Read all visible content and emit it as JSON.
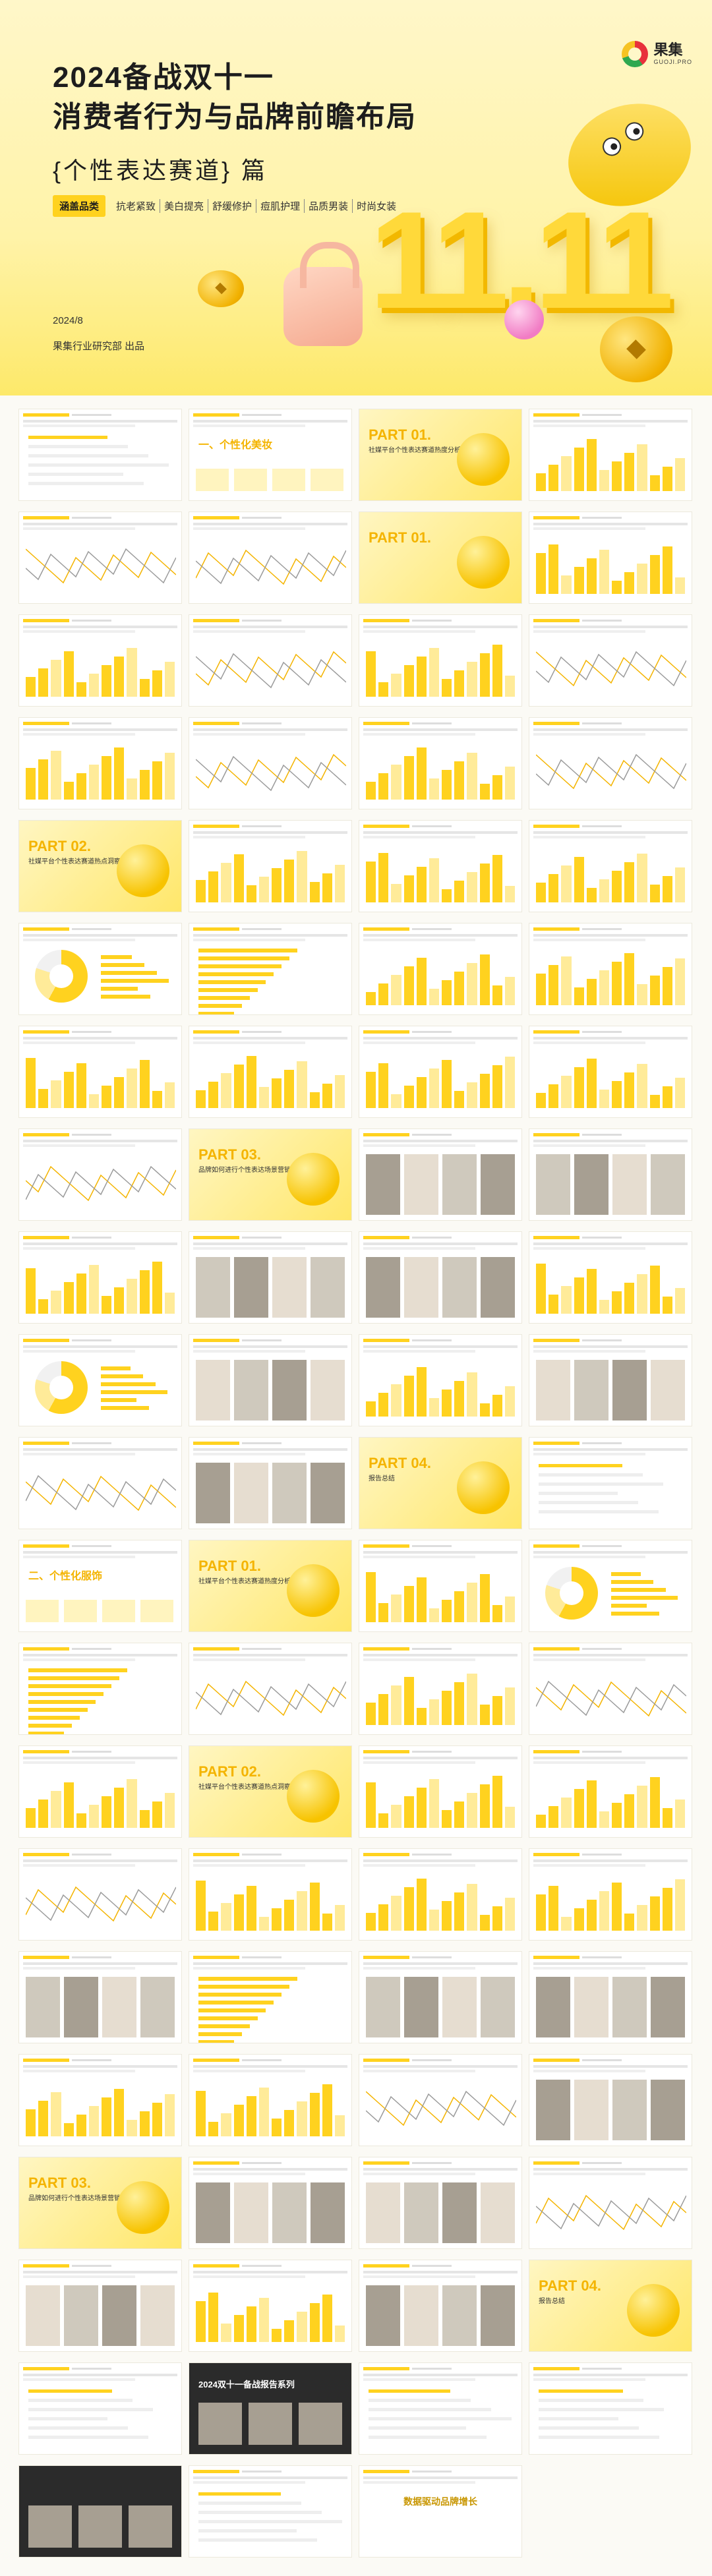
{
  "brand": {
    "name_cn": "果集",
    "name_en": "GUOJI.PRO"
  },
  "hero": {
    "title_line1": "2024备战双十一",
    "title_line2": "消费者行为与品牌前瞻布局",
    "subtitle": "{个性表达赛道} 篇",
    "tag_main": "涵盖品类",
    "tags": [
      "抗老紧致",
      "美白提亮",
      "舒缓修护",
      "痘肌护理",
      "品质男装",
      "时尚女装"
    ],
    "date": "2024/8",
    "publisher": "果集行业研究部 出品",
    "deco_text": "11.11"
  },
  "thumbnails": [
    {
      "kind": "text",
      "label": ""
    },
    {
      "kind": "section",
      "tab": "一、个性化美妆",
      "label": ""
    },
    {
      "kind": "part",
      "part": "PART 01.",
      "sub": "社媒平台个性表达赛道热度分析"
    },
    {
      "kind": "bars",
      "label": ""
    },
    {
      "kind": "line",
      "label": ""
    },
    {
      "kind": "line",
      "label": ""
    },
    {
      "kind": "part",
      "part": "PART 01.",
      "sub": ""
    },
    {
      "kind": "bars",
      "label": ""
    },
    {
      "kind": "bars",
      "label": ""
    },
    {
      "kind": "line",
      "label": ""
    },
    {
      "kind": "bars",
      "label": ""
    },
    {
      "kind": "line",
      "label": ""
    },
    {
      "kind": "bars",
      "label": ""
    },
    {
      "kind": "line",
      "label": ""
    },
    {
      "kind": "bars",
      "label": ""
    },
    {
      "kind": "line",
      "label": ""
    },
    {
      "kind": "part",
      "part": "PART 02.",
      "sub": "社媒平台个性表达赛道热点洞察"
    },
    {
      "kind": "bars",
      "label": ""
    },
    {
      "kind": "bars",
      "label": ""
    },
    {
      "kind": "bars",
      "label": ""
    },
    {
      "kind": "donut",
      "label": ""
    },
    {
      "kind": "hbars",
      "label": ""
    },
    {
      "kind": "bars",
      "label": ""
    },
    {
      "kind": "bars",
      "label": ""
    },
    {
      "kind": "bars",
      "label": ""
    },
    {
      "kind": "bars",
      "label": ""
    },
    {
      "kind": "bars",
      "label": ""
    },
    {
      "kind": "bars",
      "label": ""
    },
    {
      "kind": "line",
      "label": ""
    },
    {
      "kind": "part",
      "part": "PART 03.",
      "sub": "品牌如何进行个性表达场景营销"
    },
    {
      "kind": "photos",
      "label": ""
    },
    {
      "kind": "photos",
      "label": ""
    },
    {
      "kind": "bars",
      "label": ""
    },
    {
      "kind": "photos",
      "label": ""
    },
    {
      "kind": "photos",
      "label": ""
    },
    {
      "kind": "bars",
      "label": ""
    },
    {
      "kind": "donut",
      "label": ""
    },
    {
      "kind": "photos",
      "label": ""
    },
    {
      "kind": "bars",
      "label": ""
    },
    {
      "kind": "photos",
      "label": ""
    },
    {
      "kind": "line",
      "label": ""
    },
    {
      "kind": "photos",
      "label": ""
    },
    {
      "kind": "part",
      "part": "PART 04.",
      "sub": "报告总结"
    },
    {
      "kind": "text",
      "label": ""
    },
    {
      "kind": "section",
      "tab": "二、个性化服饰",
      "label": ""
    },
    {
      "kind": "part",
      "part": "PART 01.",
      "sub": "社媒平台个性表达赛道热度分析"
    },
    {
      "kind": "bars",
      "label": ""
    },
    {
      "kind": "donut",
      "label": ""
    },
    {
      "kind": "hbars",
      "label": ""
    },
    {
      "kind": "line",
      "label": ""
    },
    {
      "kind": "bars",
      "label": ""
    },
    {
      "kind": "line",
      "label": ""
    },
    {
      "kind": "bars",
      "label": ""
    },
    {
      "kind": "part",
      "part": "PART 02.",
      "sub": "社媒平台个性表达赛道热点洞察"
    },
    {
      "kind": "bars",
      "label": ""
    },
    {
      "kind": "bars",
      "label": ""
    },
    {
      "kind": "line",
      "label": ""
    },
    {
      "kind": "bars",
      "label": ""
    },
    {
      "kind": "bars",
      "label": ""
    },
    {
      "kind": "bars",
      "label": ""
    },
    {
      "kind": "photos",
      "label": ""
    },
    {
      "kind": "hbars",
      "label": ""
    },
    {
      "kind": "photos",
      "label": ""
    },
    {
      "kind": "photos",
      "label": ""
    },
    {
      "kind": "bars",
      "label": ""
    },
    {
      "kind": "bars",
      "label": ""
    },
    {
      "kind": "line",
      "label": ""
    },
    {
      "kind": "photos",
      "label": ""
    },
    {
      "kind": "part",
      "part": "PART 03.",
      "sub": "品牌如何进行个性表达场景营销"
    },
    {
      "kind": "photos",
      "label": ""
    },
    {
      "kind": "photos",
      "label": ""
    },
    {
      "kind": "line",
      "label": ""
    },
    {
      "kind": "photos",
      "label": ""
    },
    {
      "kind": "bars",
      "label": ""
    },
    {
      "kind": "photos",
      "label": ""
    },
    {
      "kind": "part",
      "part": "PART 04.",
      "sub": "报告总结"
    },
    {
      "kind": "text",
      "label": ""
    },
    {
      "kind": "dark",
      "label": "2024双十一备战报告系列"
    },
    {
      "kind": "text",
      "label": ""
    },
    {
      "kind": "text",
      "label": ""
    },
    {
      "kind": "dark",
      "label": ""
    },
    {
      "kind": "text",
      "label": ""
    },
    {
      "kind": "center",
      "label": "数据驱动品牌增长"
    }
  ]
}
